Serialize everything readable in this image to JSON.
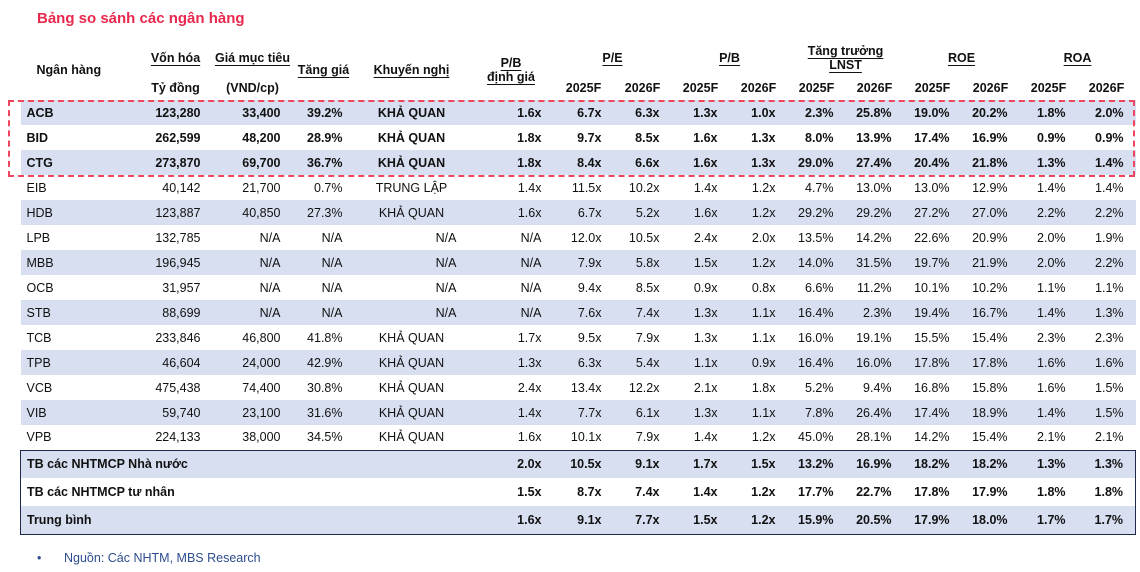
{
  "title": "Bảng so sánh các ngân hàng",
  "source_note": "Nguồn: Các NHTM, MBS Research",
  "source_bullet": "•",
  "colors": {
    "accent_red": "#e8294d",
    "dash_red": "#f0455f",
    "shade": "#d8dff1",
    "dark": "#1e2a4a",
    "src_blue": "#2e4d8e",
    "txt": "#111111"
  },
  "table": {
    "header": {
      "bank": "Ngân hàng",
      "market_cap": {
        "label": "Vốn hóa",
        "sub": "Tỷ đồng"
      },
      "target_price": {
        "label": "Giá mục tiêu",
        "sub": "(VND/cp)"
      },
      "upside": "Tăng giá",
      "recommendation": "Khuyến nghị",
      "pb_valuation": {
        "line1": "P/B",
        "line2": "định giá"
      },
      "groups": [
        {
          "id": "pe",
          "label": "P/E",
          "years": [
            "2025F",
            "2026F"
          ]
        },
        {
          "id": "pb",
          "label": "P/B",
          "years": [
            "2025F",
            "2026F"
          ]
        },
        {
          "id": "growth-lnst",
          "label": "Tăng trưởng",
          "label2": "LNST",
          "years": [
            "2025F",
            "2026F"
          ]
        },
        {
          "id": "roe",
          "label": "ROE",
          "years": [
            "2025F",
            "2026F"
          ]
        },
        {
          "id": "roa",
          "label": "ROA",
          "years": [
            "2025F",
            "2026F"
          ]
        }
      ]
    },
    "rows": [
      {
        "bank": "ACB",
        "market_cap": "123,280",
        "target_price": "33,400",
        "upside": "39.2%",
        "recommendation": "KHẢ QUAN",
        "pb_valuation": "1.6x",
        "pe_2025": "6.7x",
        "pe_2026": "6.3x",
        "pb_2025": "1.3x",
        "pb_2026": "1.0x",
        "lnst_2025": "2.3%",
        "lnst_2026": "25.8%",
        "roe_2025": "19.0%",
        "roe_2026": "20.2%",
        "roa_2025": "1.8%",
        "roa_2026": "2.0%",
        "highlighted": true
      },
      {
        "bank": "BID",
        "market_cap": "262,599",
        "target_price": "48,200",
        "upside": "28.9%",
        "recommendation": "KHẢ QUAN",
        "pb_valuation": "1.8x",
        "pe_2025": "9.7x",
        "pe_2026": "8.5x",
        "pb_2025": "1.6x",
        "pb_2026": "1.3x",
        "lnst_2025": "8.0%",
        "lnst_2026": "13.9%",
        "roe_2025": "17.4%",
        "roe_2026": "16.9%",
        "roa_2025": "0.9%",
        "roa_2026": "0.9%",
        "highlighted": true
      },
      {
        "bank": "CTG",
        "market_cap": "273,870",
        "target_price": "69,700",
        "upside": "36.7%",
        "recommendation": "KHẢ QUAN",
        "pb_valuation": "1.8x",
        "pe_2025": "8.4x",
        "pe_2026": "6.6x",
        "pb_2025": "1.6x",
        "pb_2026": "1.3x",
        "lnst_2025": "29.0%",
        "lnst_2026": "27.4%",
        "roe_2025": "20.4%",
        "roe_2026": "21.8%",
        "roa_2025": "1.3%",
        "roa_2026": "1.4%",
        "highlighted": true
      },
      {
        "bank": "EIB",
        "market_cap": "40,142",
        "target_price": "21,700",
        "upside": "0.7%",
        "recommendation": "TRUNG LẬP",
        "pb_valuation": "1.4x",
        "pe_2025": "11.5x",
        "pe_2026": "10.2x",
        "pb_2025": "1.4x",
        "pb_2026": "1.2x",
        "lnst_2025": "4.7%",
        "lnst_2026": "13.0%",
        "roe_2025": "13.0%",
        "roe_2026": "12.9%",
        "roa_2025": "1.4%",
        "roa_2026": "1.4%",
        "highlighted": false
      },
      {
        "bank": "HDB",
        "market_cap": "123,887",
        "target_price": "40,850",
        "upside": "27.3%",
        "recommendation": "KHẢ QUAN",
        "pb_valuation": "1.6x",
        "pe_2025": "6.7x",
        "pe_2026": "5.2x",
        "pb_2025": "1.6x",
        "pb_2026": "1.2x",
        "lnst_2025": "29.2%",
        "lnst_2026": "29.2%",
        "roe_2025": "27.2%",
        "roe_2026": "27.0%",
        "roa_2025": "2.2%",
        "roa_2026": "2.2%",
        "highlighted": false
      },
      {
        "bank": "LPB",
        "market_cap": "132,785",
        "target_price": "N/A",
        "upside": "N/A",
        "recommendation": "N/A",
        "pb_valuation": "N/A",
        "pe_2025": "12.0x",
        "pe_2026": "10.5x",
        "pb_2025": "2.4x",
        "pb_2026": "2.0x",
        "lnst_2025": "13.5%",
        "lnst_2026": "14.2%",
        "roe_2025": "22.6%",
        "roe_2026": "20.9%",
        "roa_2025": "2.0%",
        "roa_2026": "1.9%",
        "highlighted": false
      },
      {
        "bank": "MBB",
        "market_cap": "196,945",
        "target_price": "N/A",
        "upside": "N/A",
        "recommendation": "N/A",
        "pb_valuation": "N/A",
        "pe_2025": "7.9x",
        "pe_2026": "5.8x",
        "pb_2025": "1.5x",
        "pb_2026": "1.2x",
        "lnst_2025": "14.0%",
        "lnst_2026": "31.5%",
        "roe_2025": "19.7%",
        "roe_2026": "21.9%",
        "roa_2025": "2.0%",
        "roa_2026": "2.2%",
        "highlighted": false
      },
      {
        "bank": "OCB",
        "market_cap": "31,957",
        "target_price": "N/A",
        "upside": "N/A",
        "recommendation": "N/A",
        "pb_valuation": "N/A",
        "pe_2025": "9.4x",
        "pe_2026": "8.5x",
        "pb_2025": "0.9x",
        "pb_2026": "0.8x",
        "lnst_2025": "6.6%",
        "lnst_2026": "11.2%",
        "roe_2025": "10.1%",
        "roe_2026": "10.2%",
        "roa_2025": "1.1%",
        "roa_2026": "1.1%",
        "highlighted": false
      },
      {
        "bank": "STB",
        "market_cap": "88,699",
        "target_price": "N/A",
        "upside": "N/A",
        "recommendation": "N/A",
        "pb_valuation": "N/A",
        "pe_2025": "7.6x",
        "pe_2026": "7.4x",
        "pb_2025": "1.3x",
        "pb_2026": "1.1x",
        "lnst_2025": "16.4%",
        "lnst_2026": "2.3%",
        "roe_2025": "19.4%",
        "roe_2026": "16.7%",
        "roa_2025": "1.4%",
        "roa_2026": "1.3%",
        "highlighted": false
      },
      {
        "bank": "TCB",
        "market_cap": "233,846",
        "target_price": "46,800",
        "upside": "41.8%",
        "recommendation": "KHẢ QUAN",
        "pb_valuation": "1.7x",
        "pe_2025": "9.5x",
        "pe_2026": "7.9x",
        "pb_2025": "1.3x",
        "pb_2026": "1.1x",
        "lnst_2025": "16.0%",
        "lnst_2026": "19.1%",
        "roe_2025": "15.5%",
        "roe_2026": "15.4%",
        "roa_2025": "2.3%",
        "roa_2026": "2.3%",
        "highlighted": false
      },
      {
        "bank": "TPB",
        "market_cap": "46,604",
        "target_price": "24,000",
        "upside": "42.9%",
        "recommendation": "KHẢ QUAN",
        "pb_valuation": "1.3x",
        "pe_2025": "6.3x",
        "pe_2026": "5.4x",
        "pb_2025": "1.1x",
        "pb_2026": "0.9x",
        "lnst_2025": "16.4%",
        "lnst_2026": "16.0%",
        "roe_2025": "17.8%",
        "roe_2026": "17.8%",
        "roa_2025": "1.6%",
        "roa_2026": "1.6%",
        "highlighted": false
      },
      {
        "bank": "VCB",
        "market_cap": "475,438",
        "target_price": "74,400",
        "upside": "30.8%",
        "recommendation": "KHẢ QUAN",
        "pb_valuation": "2.4x",
        "pe_2025": "13.4x",
        "pe_2026": "12.2x",
        "pb_2025": "2.1x",
        "pb_2026": "1.8x",
        "lnst_2025": "5.2%",
        "lnst_2026": "9.4%",
        "roe_2025": "16.8%",
        "roe_2026": "15.8%",
        "roa_2025": "1.6%",
        "roa_2026": "1.5%",
        "highlighted": false
      },
      {
        "bank": "VIB",
        "market_cap": "59,740",
        "target_price": "23,100",
        "upside": "31.6%",
        "recommendation": "KHẢ QUAN",
        "pb_valuation": "1.4x",
        "pe_2025": "7.7x",
        "pe_2026": "6.1x",
        "pb_2025": "1.3x",
        "pb_2026": "1.1x",
        "lnst_2025": "7.8%",
        "lnst_2026": "26.4%",
        "roe_2025": "17.4%",
        "roe_2026": "18.9%",
        "roa_2025": "1.4%",
        "roa_2026": "1.5%",
        "highlighted": false
      },
      {
        "bank": "VPB",
        "market_cap": "224,133",
        "target_price": "38,000",
        "upside": "34.5%",
        "recommendation": "KHẢ QUAN",
        "pb_valuation": "1.6x",
        "pe_2025": "10.1x",
        "pe_2026": "7.9x",
        "pb_2025": "1.4x",
        "pb_2026": "1.2x",
        "lnst_2025": "45.0%",
        "lnst_2026": "28.1%",
        "roe_2025": "14.2%",
        "roe_2026": "15.4%",
        "roa_2025": "2.1%",
        "roa_2026": "2.1%",
        "highlighted": false
      }
    ],
    "summary_rows": [
      {
        "label": "TB các NHTMCP Nhà nước",
        "pb_valuation": "2.0x",
        "pe_2025": "10.5x",
        "pe_2026": "9.1x",
        "pb_2025": "1.7x",
        "pb_2026": "1.5x",
        "lnst_2025": "13.2%",
        "lnst_2026": "16.9%",
        "roe_2025": "18.2%",
        "roe_2026": "18.2%",
        "roa_2025": "1.3%",
        "roa_2026": "1.3%"
      },
      {
        "label": "TB các NHTMCP tư nhân",
        "pb_valuation": "1.5x",
        "pe_2025": "8.7x",
        "pe_2026": "7.4x",
        "pb_2025": "1.4x",
        "pb_2026": "1.2x",
        "lnst_2025": "17.7%",
        "lnst_2026": "22.7%",
        "roe_2025": "17.8%",
        "roe_2026": "17.9%",
        "roa_2025": "1.8%",
        "roa_2026": "1.8%"
      },
      {
        "label": "Trung bình",
        "pb_valuation": "1.6x",
        "pe_2025": "9.1x",
        "pe_2026": "7.7x",
        "pb_2025": "1.5x",
        "pb_2026": "1.2x",
        "lnst_2025": "15.9%",
        "lnst_2026": "20.5%",
        "roe_2025": "17.9%",
        "roe_2026": "18.0%",
        "roa_2025": "1.7%",
        "roa_2026": "1.7%"
      }
    ]
  }
}
